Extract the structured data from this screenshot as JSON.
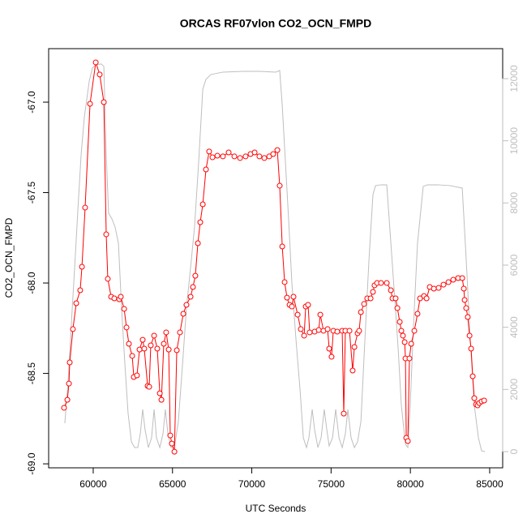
{
  "chart_data": {
    "type": "line",
    "title": "ORCAS RF07vlon CO2_OCN_FMPD",
    "xlabel": "UTC Seconds",
    "ylabel": "CO2_OCN_FMPD",
    "xlim": [
      57190,
      85820
    ],
    "ylim": [
      -69.022,
      -66.704
    ],
    "y2lim": [
      -522,
      12965
    ],
    "xticks": [
      60000,
      65000,
      70000,
      75000,
      80000,
      85000
    ],
    "yticks": [
      {
        "value": -69,
        "label": "-69.0"
      },
      -68.5,
      {
        "value": -68,
        "label": "-68.0"
      },
      -67.5,
      {
        "value": -67,
        "label": "-67.0"
      }
    ],
    "y2ticks": [
      0,
      2000,
      4000,
      6000,
      8000,
      10000,
      12000
    ],
    "y2color": "#bebebe",
    "series": [
      {
        "color": "#ff0000",
        "marker": "circle",
        "x": [
          58160,
          58370,
          58470,
          58520,
          58720,
          58930,
          59180,
          59290,
          59490,
          59800,
          60160,
          60410,
          60670,
          60820,
          60920,
          61130,
          61330,
          61640,
          61740,
          61950,
          62100,
          62250,
          62460,
          62560,
          62760,
          62920,
          63120,
          63220,
          63430,
          63530,
          63630,
          63840,
          64040,
          64200,
          64300,
          64450,
          64600,
          64760,
          64860,
          64960,
          65120,
          65270,
          65470,
          65680,
          65880,
          66140,
          66290,
          66440,
          66600,
          66750,
          66910,
          67110,
          67310,
          67520,
          67830,
          68180,
          68540,
          68900,
          69260,
          69610,
          69920,
          70180,
          70480,
          70790,
          71100,
          71350,
          71610,
          71760,
          71920,
          72070,
          72220,
          72380,
          72530,
          72630,
          72890,
          73090,
          73300,
          73400,
          73550,
          73650,
          73960,
          74220,
          74320,
          74520,
          74780,
          74880,
          75030,
          75140,
          75390,
          75700,
          75800,
          75900,
          76160,
          76360,
          76470,
          76670,
          76770,
          76880,
          77080,
          77280,
          77490,
          77640,
          77740,
          77900,
          78150,
          78510,
          78770,
          78870,
          79070,
          79180,
          79330,
          79430,
          79530,
          79640,
          79690,
          79740,
          79840,
          79940,
          80050,
          80250,
          80450,
          80610,
          80860,
          81020,
          81220,
          81480,
          81780,
          82090,
          82400,
          82700,
          83010,
          83270,
          83370,
          83420,
          83520,
          83620,
          83730,
          83830,
          83930,
          84030,
          84140,
          84240,
          84340,
          84490,
          84650
        ],
        "values": [
          -68.69,
          -68.646,
          -68.556,
          -68.439,
          -68.255,
          -68.112,
          -68.04,
          -67.91,
          -67.583,
          -67.009,
          -66.78,
          -66.847,
          -67.0,
          -67.731,
          -67.977,
          -68.076,
          -68.085,
          -68.09,
          -68.076,
          -68.143,
          -68.246,
          -68.336,
          -68.403,
          -68.52,
          -68.511,
          -68.368,
          -68.314,
          -68.363,
          -68.569,
          -68.574,
          -68.345,
          -68.291,
          -68.363,
          -68.61,
          -68.646,
          -68.336,
          -68.273,
          -68.368,
          -68.843,
          -68.888,
          -68.933,
          -68.372,
          -68.273,
          -68.17,
          -68.121,
          -68.076,
          -68.022,
          -67.96,
          -67.78,
          -67.664,
          -67.565,
          -67.372,
          -67.273,
          -67.305,
          -67.296,
          -67.3,
          -67.278,
          -67.3,
          -67.309,
          -67.3,
          -67.287,
          -67.278,
          -67.3,
          -67.309,
          -67.3,
          -67.287,
          -67.265,
          -67.462,
          -67.798,
          -67.995,
          -68.081,
          -68.121,
          -68.13,
          -68.076,
          -68.175,
          -68.255,
          -68.291,
          -68.13,
          -68.121,
          -68.273,
          -68.269,
          -68.26,
          -68.175,
          -68.264,
          -68.255,
          -68.363,
          -68.408,
          -68.264,
          -68.269,
          -68.264,
          -68.722,
          -68.264,
          -68.264,
          -68.484,
          -68.354,
          -68.278,
          -68.264,
          -68.161,
          -68.116,
          -68.085,
          -68.085,
          -68.049,
          -68.013,
          -68.0,
          -68.0,
          -68.0,
          -68.04,
          -68.085,
          -68.085,
          -68.139,
          -68.215,
          -68.264,
          -68.291,
          -68.327,
          -68.417,
          -68.856,
          -68.874,
          -68.417,
          -68.336,
          -68.264,
          -68.17,
          -68.085,
          -68.072,
          -68.085,
          -68.022,
          -68.031,
          -68.027,
          -68.009,
          -67.995,
          -67.982,
          -67.973,
          -67.973,
          -68.031,
          -68.094,
          -68.139,
          -68.188,
          -68.291,
          -68.363,
          -68.516,
          -68.637,
          -68.672,
          -68.677,
          -68.664,
          -68.655,
          -68.65
        ]
      },
      {
        "color": "#bebebe",
        "axis": "y2",
        "x": [
          58210,
          58420,
          58620,
          58830,
          59030,
          59240,
          59440,
          59750,
          59950,
          60160,
          60510,
          60670,
          60820,
          60970,
          61180,
          61380,
          61590,
          61790,
          62000,
          62200,
          62410,
          62610,
          62810,
          62970,
          63120,
          63270,
          63480,
          63680,
          63840,
          63990,
          64200,
          64400,
          64550,
          64710,
          64910,
          65120,
          65370,
          65630,
          65880,
          66140,
          66390,
          66650,
          66910,
          67110,
          67420,
          68180,
          69460,
          70480,
          71510,
          71760,
          71920,
          72120,
          72320,
          72530,
          72790,
          73040,
          73250,
          73450,
          73600,
          73810,
          73960,
          74170,
          74370,
          74570,
          74730,
          74880,
          75090,
          75290,
          75500,
          75700,
          75900,
          76060,
          76260,
          76470,
          76670,
          76880,
          77130,
          77390,
          77640,
          77800,
          78150,
          78510,
          78770,
          79020,
          79230,
          79430,
          79690,
          79840,
          79990,
          80200,
          80450,
          80810,
          81070,
          81730,
          82500,
          83270,
          83520,
          83780,
          84030,
          84290,
          84490,
          84700
        ],
        "values": [
          913,
          2270,
          4096,
          5922,
          7749,
          9575,
          10749,
          11923,
          12341,
          12445,
          12471,
          12393,
          9575,
          7670,
          7488,
          7227,
          6705,
          4618,
          2792,
          1226,
          313,
          130,
          130,
          574,
          1357,
          704,
          130,
          444,
          1357,
          444,
          130,
          574,
          1357,
          574,
          130,
          130,
          965,
          2792,
          4618,
          5922,
          7227,
          9314,
          11662,
          11975,
          12132,
          12210,
          12236,
          12236,
          12210,
          12262,
          11140,
          9314,
          7488,
          5401,
          3574,
          2009,
          444,
          130,
          444,
          1357,
          704,
          130,
          444,
          1357,
          704,
          183,
          444,
          1357,
          444,
          130,
          574,
          1357,
          444,
          130,
          313,
          965,
          3574,
          6183,
          8271,
          8558,
          8584,
          8584,
          6705,
          4879,
          3313,
          1487,
          235,
          130,
          1487,
          4096,
          6705,
          8531,
          8584,
          8584,
          8558,
          8479,
          6183,
          3574,
          1487,
          444,
          26,
          0
        ]
      }
    ]
  }
}
